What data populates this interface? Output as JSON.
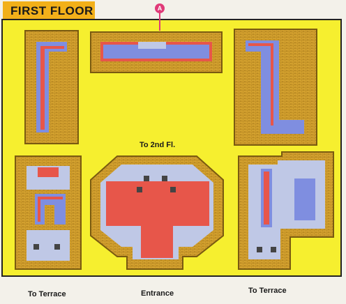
{
  "title": "FIRST FLOOR",
  "marker": "A",
  "labels": {
    "to_2nd_floor": "To 2nd Fl.",
    "to_terrace_left": "To Terrace",
    "entrance": "Entrance",
    "to_terrace_right": "To Terrace"
  },
  "colors": {
    "background": "#f6ef2f",
    "wall": "#b98a1f",
    "brick": "#d9a632",
    "red_carpet": "#e7564a",
    "water": "#7f8ee0",
    "marker": "#e03a78",
    "title_tab": "#f2b01a"
  }
}
